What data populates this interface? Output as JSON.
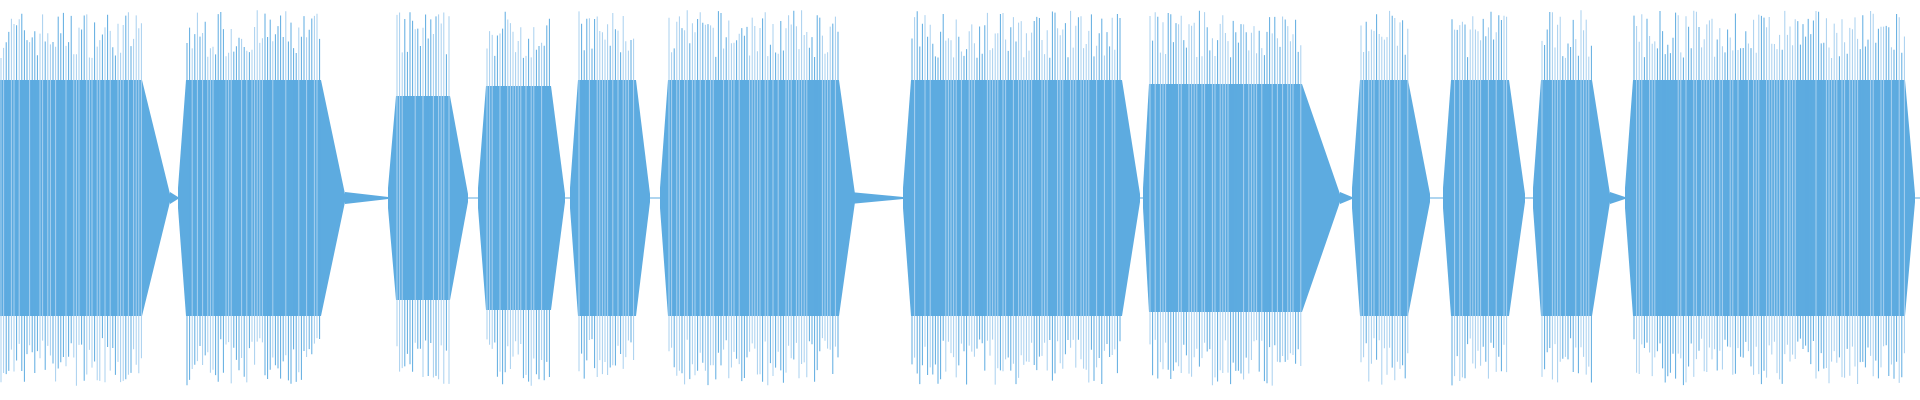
{
  "waveform": {
    "color": "#5dabe0",
    "light_color": "#a8d0ef",
    "background": "#ffffff",
    "segment_count": 15
  }
}
